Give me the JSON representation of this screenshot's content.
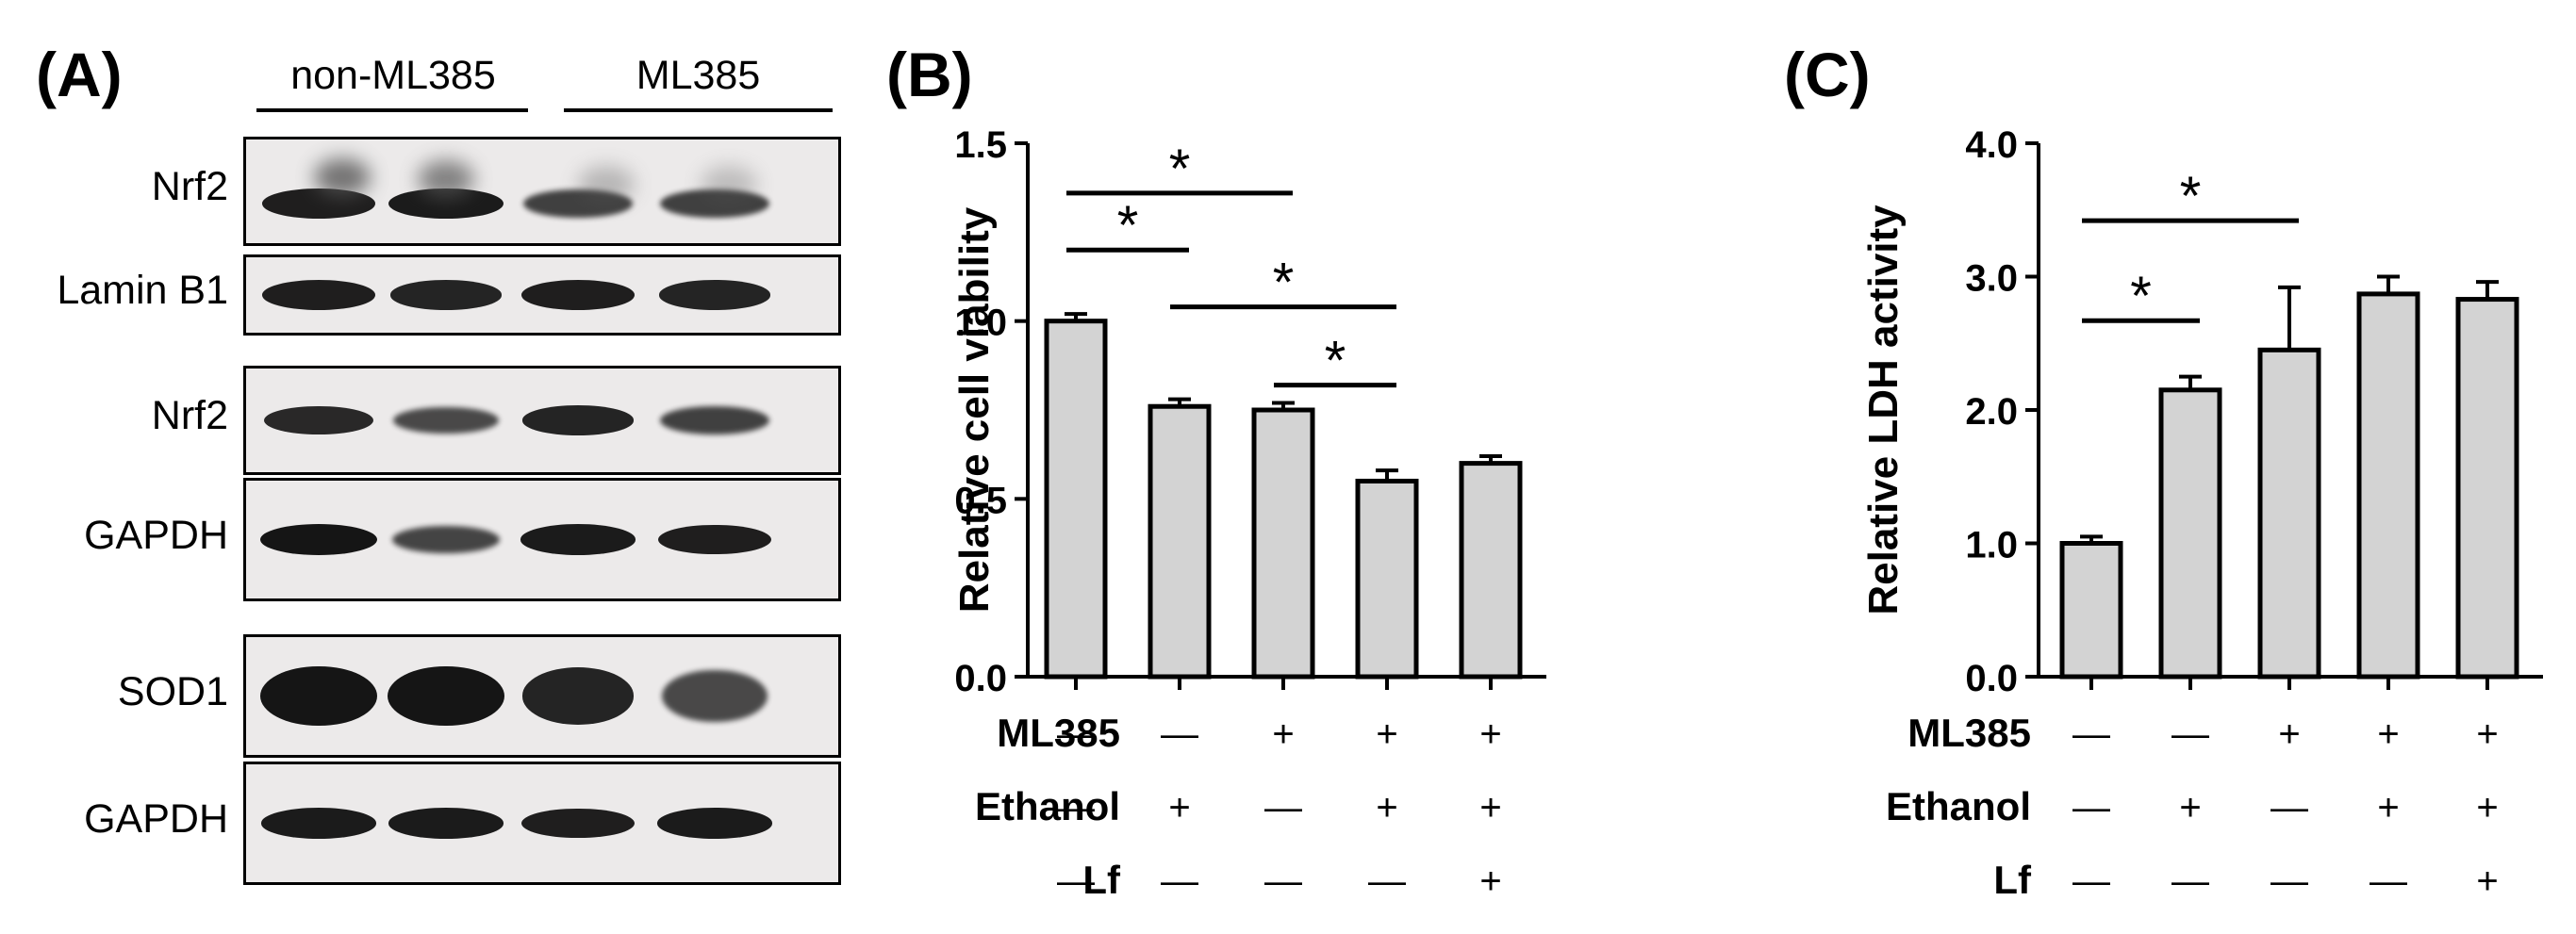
{
  "panels": {
    "a": {
      "label": "(A)",
      "groups": [
        "non-ML385",
        "ML385"
      ],
      "blots": [
        {
          "label": "Nrf2",
          "intensities": [
            0.9,
            0.95,
            0.75,
            0.75
          ]
        },
        {
          "label": "Lamin B1",
          "intensities": [
            0.9,
            0.85,
            0.9,
            0.85
          ]
        },
        {
          "label": "Nrf2",
          "intensities": [
            0.8,
            0.65,
            0.85,
            0.75
          ]
        },
        {
          "label": "GAPDH",
          "intensities": [
            1.0,
            0.7,
            0.95,
            0.9
          ]
        },
        {
          "label": "SOD1",
          "intensities": [
            1.0,
            1.0,
            0.85,
            0.65
          ]
        },
        {
          "label": "GAPDH",
          "intensities": [
            0.95,
            0.95,
            0.9,
            0.95
          ]
        }
      ]
    },
    "b": {
      "label": "(B)"
    },
    "c": {
      "label": "(C)"
    }
  },
  "conditions": {
    "labels": [
      "ML385",
      "Ethanol",
      "Lf"
    ],
    "rows": [
      [
        "—",
        "—",
        "+",
        "+",
        "+"
      ],
      [
        "—",
        "+",
        "—",
        "+",
        "+"
      ],
      [
        "—",
        "—",
        "—",
        "—",
        "+"
      ]
    ]
  },
  "chart_data": [
    {
      "type": "bar",
      "ylabel": "Relative cell viability",
      "ylim": [
        0,
        1.5
      ],
      "yticks": [
        "0.0",
        "0.5",
        "1.0",
        "1.5"
      ],
      "yticks_values": [
        0,
        0.5,
        1.0,
        1.5
      ],
      "values": [
        1.0,
        0.76,
        0.75,
        0.55,
        0.6
      ],
      "errors": [
        0.02,
        0.02,
        0.02,
        0.03,
        0.02
      ],
      "significance": [
        {
          "from": 0,
          "to": 1,
          "y": 1.2,
          "label": "*"
        },
        {
          "from": 0,
          "to": 2,
          "y": 1.36,
          "label": "*"
        },
        {
          "from": 1,
          "to": 3,
          "y": 1.04,
          "label": "*"
        },
        {
          "from": 2,
          "to": 3,
          "y": 0.82,
          "label": "*"
        }
      ]
    },
    {
      "type": "bar",
      "ylabel": "Relative LDH activity",
      "ylim": [
        0,
        4.0
      ],
      "yticks": [
        "0.0",
        "1.0",
        "2.0",
        "3.0",
        "4.0"
      ],
      "yticks_values": [
        0,
        1.0,
        2.0,
        3.0,
        4.0
      ],
      "values": [
        1.0,
        2.15,
        2.45,
        2.87,
        2.83
      ],
      "errors": [
        0.05,
        0.1,
        0.47,
        0.13,
        0.13
      ],
      "significance": [
        {
          "from": 0,
          "to": 1,
          "y": 2.67,
          "label": "*"
        },
        {
          "from": 0,
          "to": 2,
          "y": 3.42,
          "label": "*"
        }
      ]
    }
  ]
}
